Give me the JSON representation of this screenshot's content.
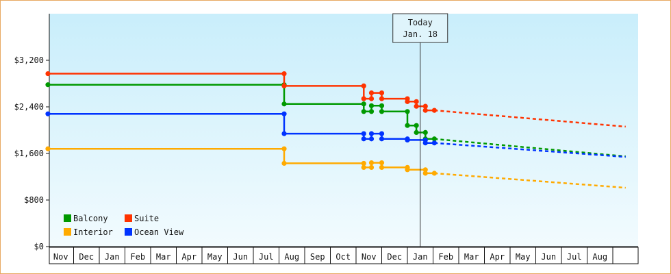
{
  "chart_data": {
    "type": "line",
    "step": true,
    "ylim": [
      0,
      4000
    ],
    "yticks": [
      0,
      800,
      1600,
      2400,
      3200
    ],
    "ytick_labels": [
      "$0",
      "$800",
      "$1,600",
      "$2,400",
      "$3,200"
    ],
    "months": [
      "Nov",
      "Dec",
      "Jan",
      "Feb",
      "Mar",
      "Apr",
      "May",
      "Jun",
      "Jul",
      "Aug",
      "Sep",
      "Oct",
      "Nov",
      "Dec",
      "Jan",
      "Feb",
      "Mar",
      "Apr",
      "May",
      "Jun",
      "Jul",
      "Aug"
    ],
    "today": {
      "line1": "Today",
      "line2": "Jan. 18",
      "x": 14.5
    },
    "series": [
      {
        "name": "Balcony",
        "color": "#009900",
        "points": [
          [
            0,
            2780
          ],
          [
            9.2,
            2780
          ],
          [
            9.2,
            2450
          ],
          [
            12.3,
            2450
          ],
          [
            12.3,
            2320
          ],
          [
            12.6,
            2320
          ],
          [
            12.6,
            2420
          ],
          [
            13,
            2420
          ],
          [
            13,
            2320
          ],
          [
            14,
            2320
          ],
          [
            14,
            2080
          ],
          [
            14.35,
            2080
          ],
          [
            14.35,
            1960
          ],
          [
            14.7,
            1960
          ],
          [
            14.7,
            1850
          ],
          [
            15.05,
            1850
          ]
        ],
        "forecast": [
          [
            15.05,
            1850
          ],
          [
            22.5,
            1550
          ]
        ]
      },
      {
        "name": "Suite",
        "color": "#ff3300",
        "points": [
          [
            0,
            2970
          ],
          [
            9.2,
            2970
          ],
          [
            9.2,
            2760
          ],
          [
            12.3,
            2760
          ],
          [
            12.3,
            2540
          ],
          [
            12.6,
            2540
          ],
          [
            12.6,
            2640
          ],
          [
            13,
            2640
          ],
          [
            13,
            2540
          ],
          [
            14,
            2540
          ],
          [
            14,
            2490
          ],
          [
            14.35,
            2490
          ],
          [
            14.35,
            2410
          ],
          [
            14.7,
            2410
          ],
          [
            14.7,
            2340
          ],
          [
            15.05,
            2340
          ]
        ],
        "forecast": [
          [
            15.05,
            2340
          ],
          [
            22.5,
            2060
          ]
        ]
      },
      {
        "name": "Interior",
        "color": "#ffaa00",
        "points": [
          [
            0,
            1680
          ],
          [
            9.2,
            1680
          ],
          [
            9.2,
            1430
          ],
          [
            12.3,
            1430
          ],
          [
            12.3,
            1360
          ],
          [
            12.6,
            1360
          ],
          [
            12.6,
            1440
          ],
          [
            13,
            1440
          ],
          [
            13,
            1360
          ],
          [
            14,
            1360
          ],
          [
            14,
            1320
          ],
          [
            14.7,
            1320
          ],
          [
            14.7,
            1260
          ],
          [
            15.05,
            1260
          ]
        ],
        "forecast": [
          [
            15.05,
            1260
          ],
          [
            22.5,
            1010
          ]
        ]
      },
      {
        "name": "Ocean View",
        "color": "#0033ff",
        "points": [
          [
            0,
            2280
          ],
          [
            9.2,
            2280
          ],
          [
            9.2,
            1940
          ],
          [
            12.3,
            1940
          ],
          [
            12.3,
            1850
          ],
          [
            12.6,
            1850
          ],
          [
            12.6,
            1940
          ],
          [
            13,
            1940
          ],
          [
            13,
            1850
          ],
          [
            14,
            1850
          ],
          [
            14,
            1830
          ],
          [
            14.7,
            1830
          ],
          [
            14.7,
            1780
          ],
          [
            15.05,
            1780
          ]
        ],
        "forecast": [
          [
            15.05,
            1780
          ],
          [
            22.5,
            1540
          ]
        ]
      }
    ]
  }
}
